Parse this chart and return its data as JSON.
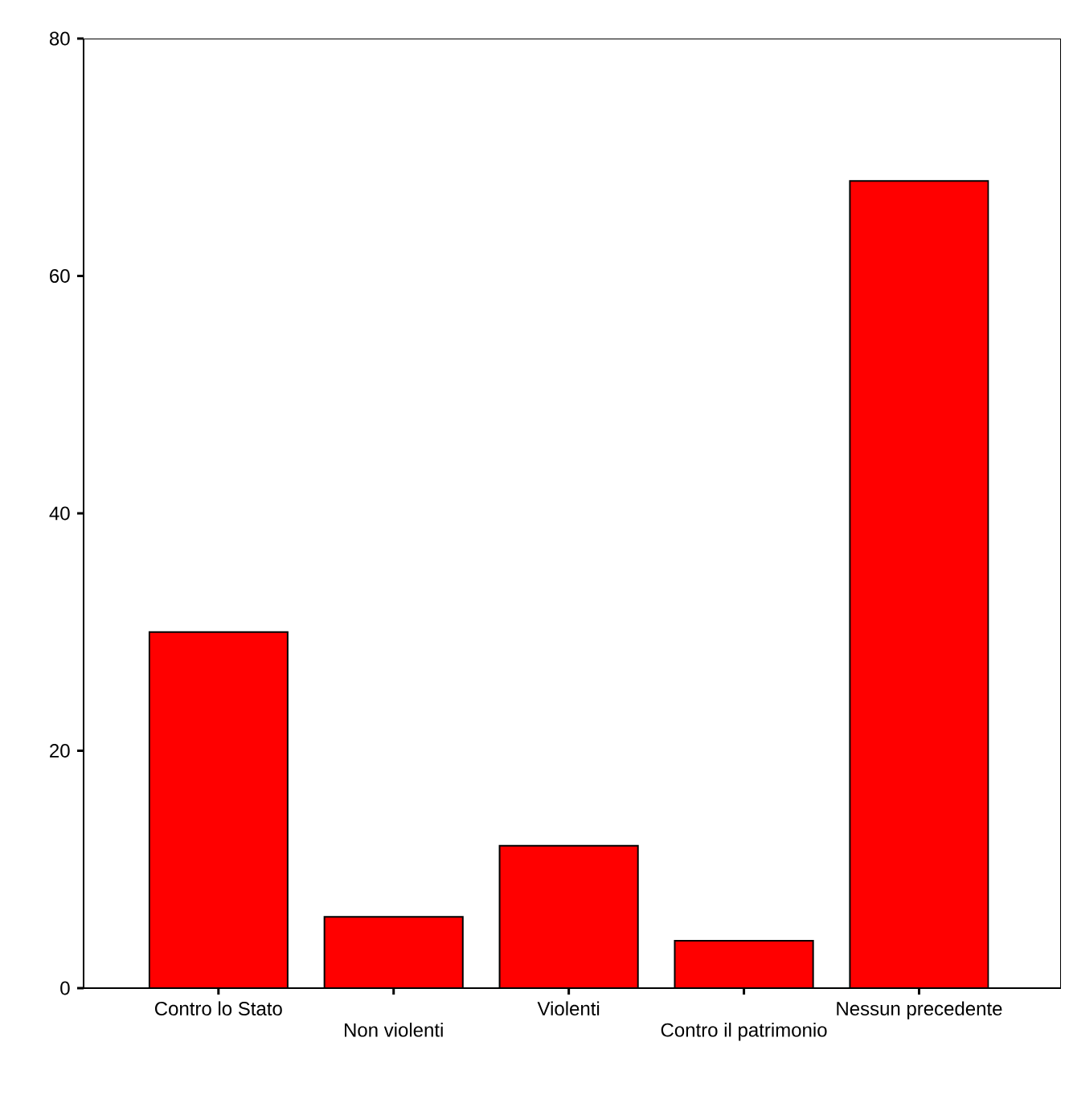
{
  "chart_data": {
    "type": "bar",
    "categories": [
      "Contro lo Stato",
      "Non violenti",
      "Violenti",
      "Contro il patrimonio",
      "Nessun precedente"
    ],
    "values": [
      30,
      6,
      12,
      4,
      68
    ],
    "color": "#ff0000",
    "ylim": [
      0,
      80
    ],
    "yticks": [
      0,
      20,
      40,
      60,
      80
    ]
  }
}
